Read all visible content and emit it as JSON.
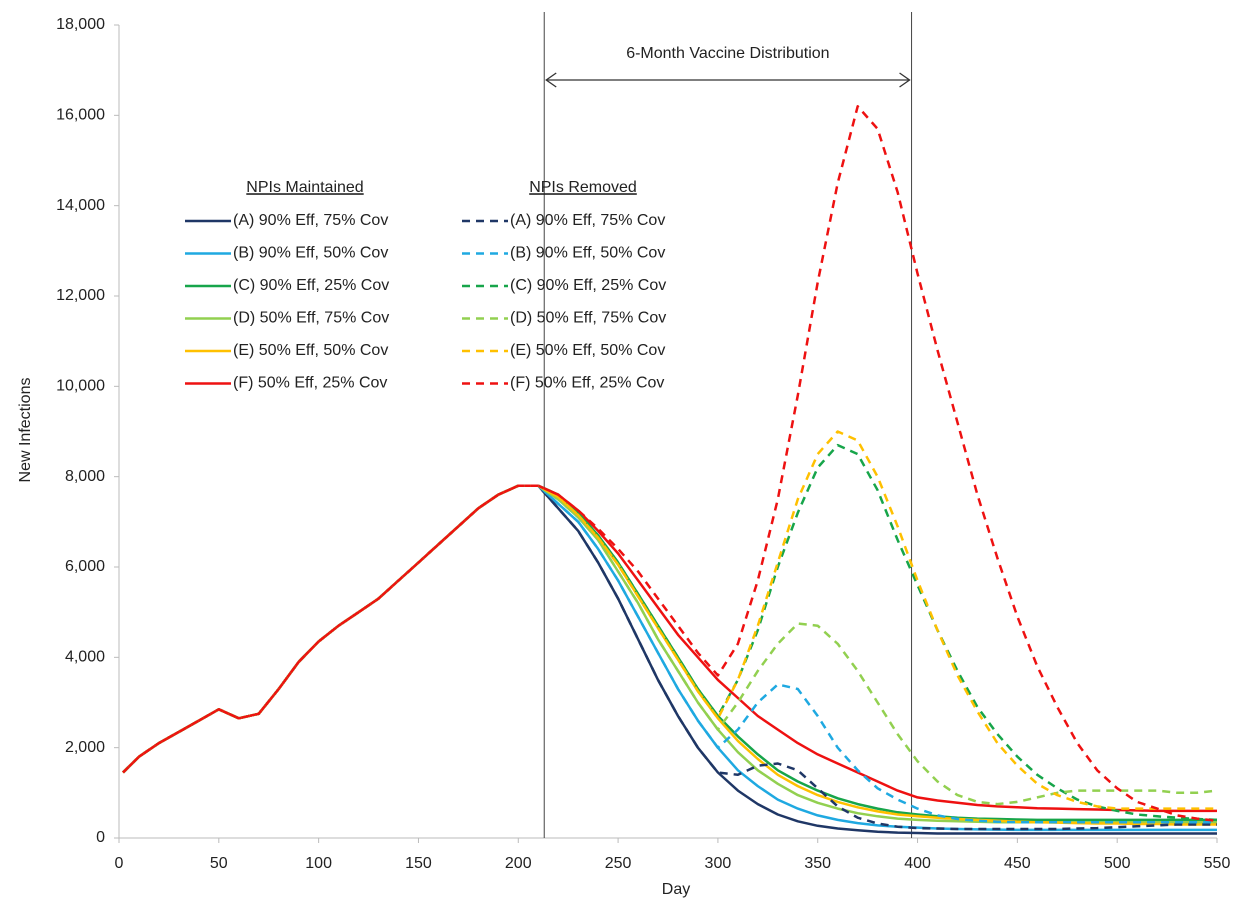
{
  "chart_data": {
    "type": "line",
    "xlabel": "Day",
    "ylabel": "New Infections",
    "xlim": [
      0,
      550
    ],
    "xticks": [
      0,
      50,
      100,
      150,
      200,
      250,
      300,
      350,
      400,
      450,
      500,
      550
    ],
    "ylim": [
      0,
      18000
    ],
    "yticks": [
      0,
      {
        "value": 2000,
        "label": "2,000"
      },
      {
        "value": 4000,
        "label": "4,000"
      },
      {
        "value": 6000,
        "label": "6,000"
      },
      {
        "value": 8000,
        "label": "8,000"
      },
      {
        "value": 10000,
        "label": "10,000"
      },
      {
        "value": 12000,
        "label": "12,000"
      },
      {
        "value": 14000,
        "label": "14,000"
      },
      {
        "value": 16000,
        "label": "16,000"
      },
      {
        "value": 18000,
        "label": "18,000"
      }
    ],
    "grid": false,
    "annotation": {
      "text": "6-Month Vaccine Distribution",
      "x": [
        213,
        397
      ]
    },
    "legend_groups": [
      "NPIs Maintained",
      "NPIs Removed"
    ],
    "x": [
      2,
      10,
      20,
      30,
      40,
      50,
      60,
      70,
      80,
      90,
      100,
      110,
      120,
      130,
      140,
      150,
      160,
      170,
      180,
      190,
      200,
      210,
      220,
      230,
      240,
      250,
      260,
      270,
      280,
      290,
      300,
      310,
      320,
      330,
      340,
      350,
      360,
      370,
      380,
      390,
      400,
      410,
      420,
      430,
      440,
      450,
      460,
      470,
      480,
      490,
      500,
      510,
      520,
      530,
      540,
      550
    ],
    "series": [
      {
        "name": "(A) 90% Eff, 75% Cov",
        "color": "#1f3766",
        "dashed": false,
        "values": [
          1450,
          1800,
          2100,
          2350,
          2600,
          2850,
          2650,
          2750,
          3300,
          3900,
          4350,
          4700,
          5000,
          5300,
          5700,
          6100,
          6500,
          6900,
          7300,
          7600,
          7800,
          7800,
          7300,
          6800,
          6100,
          5300,
          4400,
          3500,
          2700,
          2000,
          1450,
          1050,
          750,
          520,
          370,
          270,
          210,
          170,
          140,
          120,
          110,
          100,
          100,
          100,
          100,
          100,
          100,
          100,
          100,
          100,
          100,
          100,
          100,
          100,
          100,
          100
        ]
      },
      {
        "name": "(B) 90% Eff, 50% Cov",
        "color": "#1fa9e1",
        "dashed": false,
        "values": [
          1450,
          1800,
          2100,
          2350,
          2600,
          2850,
          2650,
          2750,
          3300,
          3900,
          4350,
          4700,
          5000,
          5300,
          5700,
          6100,
          6500,
          6900,
          7300,
          7600,
          7800,
          7800,
          7400,
          7000,
          6400,
          5700,
          4900,
          4100,
          3300,
          2600,
          2000,
          1500,
          1150,
          850,
          650,
          500,
          400,
          330,
          280,
          250,
          230,
          210,
          200,
          190,
          185,
          180,
          180,
          180,
          180,
          180,
          180,
          180,
          180,
          180,
          180,
          180
        ]
      },
      {
        "name": "(C) 90% Eff, 25% Cov",
        "color": "#17a54a",
        "dashed": false,
        "values": [
          1450,
          1800,
          2100,
          2350,
          2600,
          2850,
          2650,
          2750,
          3300,
          3900,
          4350,
          4700,
          5000,
          5300,
          5700,
          6100,
          6500,
          6900,
          7300,
          7600,
          7800,
          7800,
          7600,
          7200,
          6700,
          6100,
          5400,
          4700,
          4000,
          3300,
          2700,
          2250,
          1850,
          1500,
          1250,
          1050,
          880,
          750,
          650,
          570,
          520,
          480,
          450,
          430,
          420,
          410,
          400,
          400,
          400,
          400,
          400,
          400,
          400,
          400,
          400,
          400
        ]
      },
      {
        "name": "(D) 50% Eff, 75% Cov",
        "color": "#92d050",
        "dashed": false,
        "values": [
          1450,
          1800,
          2100,
          2350,
          2600,
          2850,
          2650,
          2750,
          3300,
          3900,
          4350,
          4700,
          5000,
          5300,
          5700,
          6100,
          6500,
          6900,
          7300,
          7600,
          7800,
          7800,
          7500,
          7100,
          6600,
          5900,
          5200,
          4400,
          3700,
          3000,
          2400,
          1900,
          1500,
          1200,
          950,
          780,
          650,
          550,
          480,
          430,
          400,
          380,
          370,
          360,
          350,
          350,
          350,
          350,
          350,
          350,
          350,
          350,
          350,
          350,
          350,
          350
        ]
      },
      {
        "name": "(E) 50% Eff, 50% Cov",
        "color": "#ffc000",
        "dashed": false,
        "values": [
          1450,
          1800,
          2100,
          2350,
          2600,
          2850,
          2650,
          2750,
          3300,
          3900,
          4350,
          4700,
          5000,
          5300,
          5700,
          6100,
          6500,
          6900,
          7300,
          7600,
          7800,
          7800,
          7550,
          7150,
          6650,
          6050,
          5350,
          4650,
          3950,
          3250,
          2650,
          2150,
          1750,
          1400,
          1150,
          950,
          800,
          680,
          590,
          520,
          480,
          450,
          420,
          400,
          380,
          360,
          350,
          340,
          330,
          320,
          320,
          310,
          310,
          300,
          300,
          300
        ]
      },
      {
        "name": "(F) 50% Eff, 25% Cov",
        "color": "#ee1111",
        "dashed": false,
        "values": [
          1450,
          1800,
          2100,
          2350,
          2600,
          2850,
          2650,
          2750,
          3300,
          3900,
          4350,
          4700,
          5000,
          5300,
          5700,
          6100,
          6500,
          6900,
          7300,
          7600,
          7800,
          7800,
          7600,
          7250,
          6800,
          6300,
          5700,
          5100,
          4500,
          4000,
          3500,
          3100,
          2700,
          2400,
          2100,
          1850,
          1650,
          1450,
          1250,
          1050,
          900,
          830,
          780,
          730,
          700,
          680,
          660,
          650,
          640,
          630,
          620,
          610,
          600,
          600,
          600,
          600
        ]
      },
      {
        "name": "(A) 90% Eff, 75% Cov",
        "color": "#1f3766",
        "dashed": true,
        "values": [
          1450,
          1800,
          2100,
          2350,
          2600,
          2850,
          2650,
          2750,
          3300,
          3900,
          4350,
          4700,
          5000,
          5300,
          5700,
          6100,
          6500,
          6900,
          7300,
          7600,
          7800,
          7800,
          7300,
          6800,
          6100,
          5300,
          4400,
          3500,
          2700,
          2000,
          1450,
          1400,
          1600,
          1650,
          1500,
          1100,
          700,
          450,
          320,
          250,
          220,
          210,
          200,
          200,
          200,
          200,
          200,
          200,
          210,
          220,
          240,
          260,
          280,
          300,
          300,
          300
        ]
      },
      {
        "name": "(B) 90% Eff, 50% Cov",
        "color": "#1fa9e1",
        "dashed": true,
        "values": [
          1450,
          1800,
          2100,
          2350,
          2600,
          2850,
          2650,
          2750,
          3300,
          3900,
          4350,
          4700,
          5000,
          5300,
          5700,
          6100,
          6500,
          6900,
          7300,
          7600,
          7800,
          7800,
          7400,
          7000,
          6400,
          5700,
          4900,
          4100,
          3300,
          2600,
          2000,
          2400,
          3000,
          3400,
          3300,
          2700,
          2000,
          1500,
          1100,
          850,
          650,
          500,
          420,
          380,
          360,
          350,
          350,
          350,
          350,
          350,
          350,
          350,
          350,
          350,
          350,
          350
        ]
      },
      {
        "name": "(C) 90% Eff, 25% Cov",
        "color": "#17a54a",
        "dashed": true,
        "values": [
          1450,
          1800,
          2100,
          2350,
          2600,
          2850,
          2650,
          2750,
          3300,
          3900,
          4350,
          4700,
          5000,
          5300,
          5700,
          6100,
          6500,
          6900,
          7300,
          7600,
          7800,
          7800,
          7600,
          7200,
          6700,
          6100,
          5400,
          4700,
          4000,
          3300,
          2700,
          3500,
          4600,
          6000,
          7200,
          8200,
          8700,
          8500,
          7700,
          6600,
          5600,
          4600,
          3700,
          2900,
          2300,
          1800,
          1400,
          1100,
          850,
          700,
          600,
          520,
          480,
          450,
          420,
          400
        ]
      },
      {
        "name": "(D) 50% Eff, 75% Cov",
        "color": "#92d050",
        "dashed": true,
        "values": [
          1450,
          1800,
          2100,
          2350,
          2600,
          2850,
          2650,
          2750,
          3300,
          3900,
          4350,
          4700,
          5000,
          5300,
          5700,
          6100,
          6500,
          6900,
          7300,
          7600,
          7800,
          7800,
          7500,
          7100,
          6600,
          5900,
          5200,
          4400,
          3700,
          3000,
          2400,
          3000,
          3700,
          4300,
          4750,
          4700,
          4300,
          3700,
          3000,
          2300,
          1700,
          1250,
          950,
          800,
          750,
          800,
          900,
          1000,
          1050,
          1050,
          1050,
          1050,
          1050,
          1000,
          1000,
          1050
        ]
      },
      {
        "name": "(E) 50% Eff, 50% Cov",
        "color": "#ffc000",
        "dashed": true,
        "values": [
          1450,
          1800,
          2100,
          2350,
          2600,
          2850,
          2650,
          2750,
          3300,
          3900,
          4350,
          4700,
          5000,
          5300,
          5700,
          6100,
          6500,
          6900,
          7300,
          7600,
          7800,
          7800,
          7550,
          7150,
          6650,
          6050,
          5350,
          4650,
          3950,
          3250,
          2650,
          3500,
          4700,
          6100,
          7500,
          8500,
          9000,
          8800,
          8000,
          6900,
          5700,
          4600,
          3600,
          2800,
          2100,
          1600,
          1200,
          950,
          800,
          700,
          650,
          650,
          650,
          650,
          650,
          650
        ]
      },
      {
        "name": "(F) 50% Eff, 25% Cov",
        "color": "#ee1111",
        "dashed": true,
        "values": [
          1450,
          1800,
          2100,
          2350,
          2600,
          2850,
          2650,
          2750,
          3300,
          3900,
          4350,
          4700,
          5000,
          5300,
          5700,
          6100,
          6500,
          6900,
          7300,
          7600,
          7800,
          7800,
          7600,
          7250,
          6850,
          6400,
          5900,
          5300,
          4700,
          4100,
          3600,
          4300,
          5700,
          7500,
          9800,
          12300,
          14500,
          16200,
          15700,
          14300,
          12500,
          10800,
          9200,
          7600,
          6200,
          4900,
          3800,
          2900,
          2100,
          1500,
          1100,
          800,
          650,
          500,
          430,
          380
        ]
      }
    ]
  }
}
